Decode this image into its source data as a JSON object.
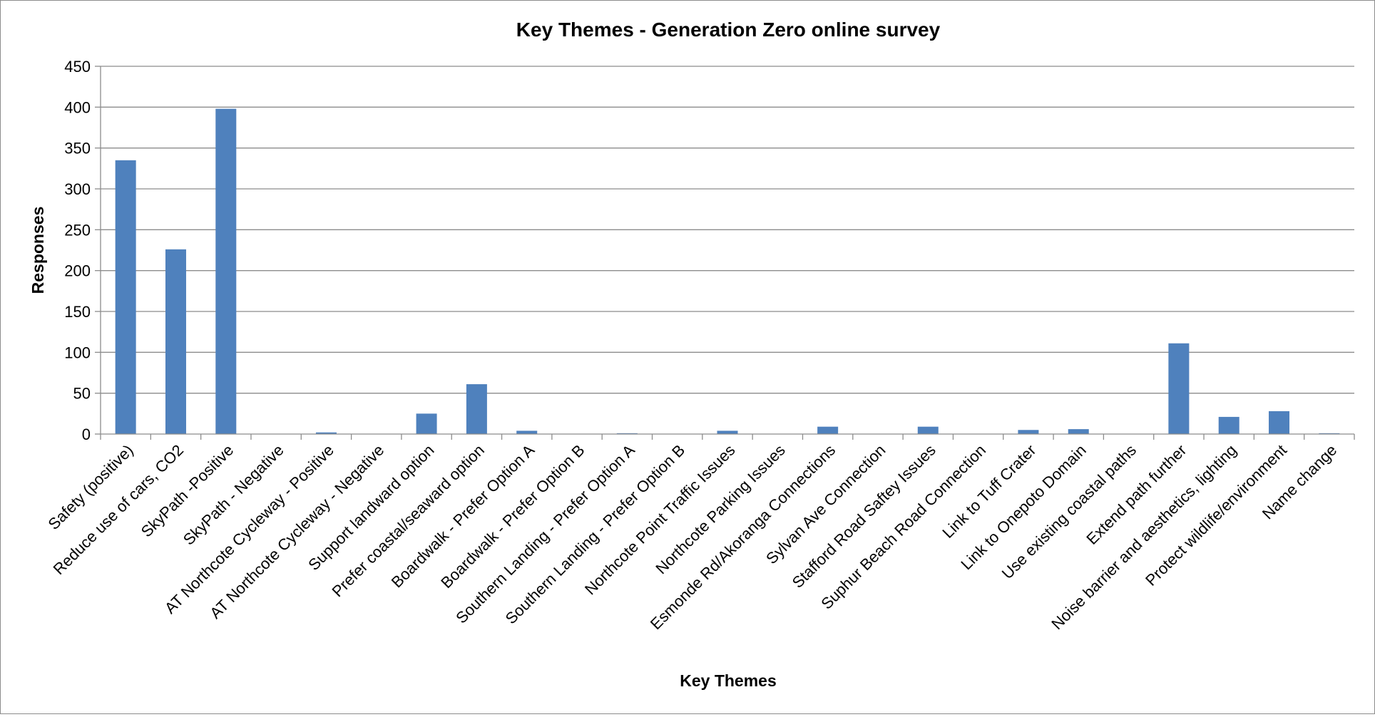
{
  "chart_data": {
    "type": "bar",
    "title": "Key Themes - Generation Zero online survey",
    "xlabel": "Key Themes",
    "ylabel": "Responses",
    "ylim": [
      0,
      450
    ],
    "yticks": [
      0,
      50,
      100,
      150,
      200,
      250,
      300,
      350,
      400,
      450
    ],
    "grid": true,
    "legend": "none",
    "bar_color": "#4f81bd",
    "categories": [
      "Safety (positive)",
      "Reduce use of cars, CO2",
      "SkyPath -Positive",
      "SkyPath - Negative",
      "AT Northcote Cycleway - Positive",
      "AT Northcote Cycleway - Negative",
      "Support landward option",
      "Prefer coastal/seaward option",
      "Boardwalk - Prefer Option A",
      "Boardwalk - Prefer Option B",
      "Southern Landing - Prefer Option A",
      "Southern Landing - Prefer Option B",
      "Northcote Point Traffic Issues",
      "Northcote  Parking Issues",
      "Esmonde Rd/Akoranga Connections",
      "Sylvan Ave Connection",
      "Stafford Road Saftey Issues",
      "Suphur Beach Road Connection",
      "Link to Tuff Crater",
      "Link to Onepoto Domain",
      "Use existing coastal paths",
      "Extend path further",
      "Noise barrier and aesthetics, lighting",
      "Protect wildlife/environment",
      "Name change"
    ],
    "values": [
      335,
      226,
      398,
      0,
      2,
      0,
      25,
      61,
      4,
      0,
      1,
      0,
      4,
      0,
      9,
      0,
      9,
      0,
      5,
      6,
      0,
      111,
      21,
      28,
      1
    ]
  }
}
